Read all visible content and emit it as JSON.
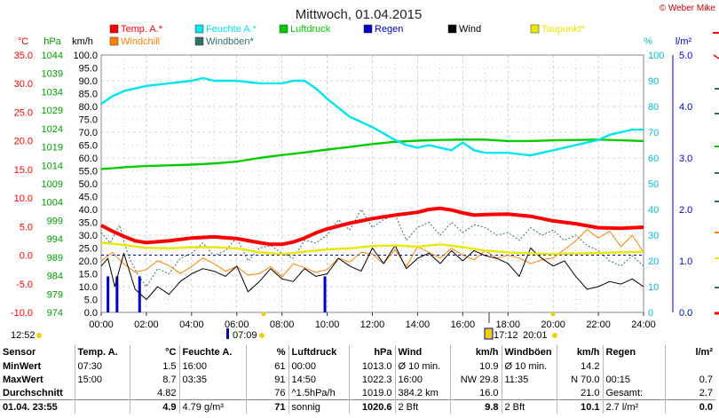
{
  "header": {
    "title": "Mittwoch, 01.04.2015",
    "copyright": "© Weber Mike"
  },
  "legend": [
    {
      "label": "Temp. A.*",
      "color": "#ff0000"
    },
    {
      "label": "Feuchte A.*",
      "color": "#00e5ee"
    },
    {
      "label": "Luftdruck",
      "color": "#00cc00"
    },
    {
      "label": "Regen",
      "color": "#0000cc"
    },
    {
      "label": "Wind",
      "color": "#000000"
    },
    {
      "label": "Taupunkt*",
      "color": "#e8e800"
    },
    {
      "label": "Windchill",
      "color": "#ff8000"
    },
    {
      "label": "Windböen*",
      "color": "#2f6f6f"
    }
  ],
  "axes": {
    "temp_unit": "°C",
    "pressure_unit": "hPa",
    "wind_unit": "km/h",
    "humidity_unit": "%",
    "rain_unit": "l/m²",
    "temp_ticks": [
      "35.0",
      "30.0",
      "25.0",
      "20.0",
      "15.0",
      "10.0",
      "5.0",
      "0.0",
      "-5.0",
      "-10.0"
    ],
    "pressure_ticks": [
      "1044",
      "1039",
      "1034",
      "1029",
      "1024",
      "1019",
      "1014",
      "1009",
      "1004",
      "999",
      "994",
      "989",
      "984",
      "979",
      "974"
    ],
    "wind_ticks": [
      "100.0",
      "95.0",
      "90.0",
      "85.0",
      "80.0",
      "75.0",
      "70.0",
      "65.0",
      "60.0",
      "55.0",
      "50.0",
      "45.0",
      "40.0",
      "35.0",
      "30.0",
      "25.0",
      "20.0",
      "15.0",
      "10.0",
      "5.0",
      "0.0"
    ],
    "humidity_ticks": [
      "100",
      "90",
      "80",
      "70",
      "60",
      "50",
      "40",
      "30",
      "20",
      "10",
      "0"
    ],
    "rain_ticks": [
      "5.0",
      "4.0",
      "3.0",
      "2.0",
      "1.0",
      "0.0"
    ],
    "x_ticks": [
      "00:00",
      "02:00",
      "04:00",
      "06:00",
      "08:00",
      "10:00",
      "12:00",
      "14:00",
      "16:00",
      "18:00",
      "20:00",
      "22:00",
      "24:00"
    ],
    "x_markers": [
      "12:52",
      "07:09",
      "17:12",
      "20:01"
    ]
  },
  "chart_data": {
    "type": "line",
    "title": "Mittwoch, 01.04.2015",
    "x_unit": "hours",
    "xlim": [
      0,
      24
    ],
    "series": [
      {
        "name": "Temp. A.*",
        "axis": "°C",
        "ylim": [
          -10,
          35
        ],
        "x": [
          0,
          0.5,
          1,
          1.5,
          2,
          3,
          4,
          5,
          6,
          7,
          7.5,
          8,
          8.5,
          9,
          9.5,
          10,
          11,
          12,
          13,
          14,
          14.5,
          15,
          15.5,
          16,
          16.5,
          17,
          18,
          19,
          20,
          21,
          22,
          23,
          24
        ],
        "values": [
          5.2,
          4.2,
          3.3,
          2.5,
          2.2,
          2.5,
          3.0,
          3.2,
          2.9,
          2.2,
          1.9,
          1.9,
          2.3,
          3.0,
          3.9,
          4.6,
          5.6,
          6.4,
          7.0,
          7.5,
          8.0,
          8.2,
          7.9,
          7.4,
          7.0,
          7.1,
          7.2,
          6.8,
          6.0,
          5.5,
          4.8,
          4.7,
          4.9
        ]
      },
      {
        "name": "Feuchte A.*",
        "axis": "%",
        "ylim": [
          0,
          100
        ],
        "x": [
          0,
          0.5,
          1,
          1.5,
          2,
          3,
          4,
          4.5,
          5,
          6,
          7,
          7.5,
          8,
          8.5,
          9,
          9.5,
          10,
          11,
          12,
          13,
          13.5,
          14,
          14.5,
          15,
          15.5,
          16,
          16.5,
          17,
          18,
          19,
          20,
          21,
          22,
          22.5,
          23,
          23.5,
          24
        ],
        "values": [
          81,
          84,
          86,
          87,
          88,
          89,
          90,
          91,
          90,
          90,
          89,
          89,
          89,
          90,
          90,
          87,
          83,
          76,
          72,
          67,
          65,
          64,
          65,
          64,
          63,
          66,
          63,
          62,
          62,
          61,
          63,
          65,
          67,
          69,
          70,
          71,
          71
        ]
      },
      {
        "name": "Luftdruck",
        "axis": "hPa",
        "ylim": [
          974,
          1044
        ],
        "x": [
          0,
          0.5,
          1,
          2,
          3,
          4,
          5,
          6,
          7,
          8,
          9,
          10,
          11,
          12,
          13,
          14,
          15,
          16,
          17,
          18,
          19,
          20,
          21,
          22,
          23,
          24
        ],
        "values": [
          1013.0,
          1013.2,
          1013.5,
          1013.8,
          1014.0,
          1014.2,
          1014.5,
          1015.0,
          1016.0,
          1016.8,
          1017.5,
          1018.3,
          1019.0,
          1019.8,
          1020.4,
          1020.7,
          1020.9,
          1021.0,
          1021.0,
          1020.6,
          1020.6,
          1020.8,
          1020.9,
          1021.0,
          1020.8,
          1020.6
        ]
      },
      {
        "name": "Taupunkt*",
        "axis": "°C",
        "ylim": [
          -10,
          35
        ],
        "x": [
          0,
          1,
          2,
          3,
          4,
          5,
          6,
          7,
          8,
          9,
          10,
          11,
          12,
          13,
          14,
          15,
          16,
          17,
          18,
          19,
          20,
          21,
          22,
          23,
          24
        ],
        "values": [
          2.2,
          1.8,
          1.3,
          1.2,
          1.4,
          1.4,
          1.2,
          0.5,
          0.2,
          0.6,
          1.0,
          1.2,
          1.6,
          1.7,
          1.5,
          1.9,
          1.4,
          0.8,
          0.5,
          0.3,
          0.2,
          0.3,
          0.4,
          0.5,
          0.6
        ]
      },
      {
        "name": "Windchill",
        "axis": "°C",
        "ylim": [
          -10,
          35
        ],
        "x": [
          0,
          0.5,
          1,
          1.5,
          2,
          2.5,
          3,
          3.5,
          4,
          4.5,
          5,
          5.5,
          6,
          6.5,
          7,
          7.5,
          8,
          8.5,
          9,
          9.5,
          10,
          10.5,
          11,
          11.5,
          12,
          12.5,
          13,
          13.5,
          14,
          14.5,
          15,
          15.5,
          16,
          16.5,
          17,
          17.5,
          18,
          18.5,
          19,
          19.5,
          20,
          20.5,
          21,
          21.5,
          22,
          22.5,
          23,
          23.5,
          24
        ],
        "values": [
          -1.0,
          0.5,
          -1.5,
          -3.0,
          -2.5,
          -1.0,
          -1.8,
          -3.2,
          -2.0,
          -0.5,
          -1.5,
          -2.8,
          -2.0,
          -3.5,
          -3.2,
          -2.0,
          -3.8,
          -1.5,
          -2.2,
          -3.0,
          -2.5,
          -0.5,
          -1.2,
          0.5,
          0.2,
          -1.5,
          1.0,
          -2.0,
          1.5,
          0.5,
          -0.5,
          1.2,
          0.0,
          -0.8,
          0.8,
          -0.5,
          0.0,
          -0.5,
          -1.5,
          -0.8,
          -0.5,
          1.0,
          2.5,
          4.5,
          3.0,
          4.2,
          1.5,
          3.5,
          0.5
        ]
      },
      {
        "name": "Wind",
        "axis": "km/h",
        "ylim": [
          0,
          100
        ],
        "x": [
          0,
          0.3,
          0.6,
          1,
          1.5,
          2,
          2.5,
          3,
          3.5,
          4,
          4.5,
          5,
          5.5,
          6,
          6.5,
          7,
          7.5,
          8,
          8.5,
          9,
          9.5,
          10,
          10.5,
          11,
          11.5,
          12,
          12.5,
          13,
          13.5,
          14,
          14.5,
          15,
          15.5,
          16,
          16.5,
          17,
          17.5,
          18,
          18.5,
          19,
          19.5,
          20,
          20.5,
          21,
          21.5,
          22,
          22.5,
          23,
          23.5,
          24
        ],
        "values": [
          18,
          21,
          10,
          23,
          9,
          5,
          10,
          7,
          12,
          15,
          17,
          16,
          14,
          18,
          8,
          12,
          17,
          13,
          12,
          17,
          14,
          15,
          21,
          18,
          16,
          25,
          19,
          26,
          17,
          21,
          23,
          19,
          24,
          20,
          24,
          22,
          21,
          19,
          14,
          25,
          21,
          18,
          20,
          14,
          9,
          10,
          12,
          11,
          13,
          10
        ]
      },
      {
        "name": "Windböen*",
        "axis": "km/h",
        "ylim": [
          0,
          100
        ],
        "x": [
          0,
          0.4,
          0.8,
          1.2,
          1.6,
          2,
          2.5,
          3,
          3.5,
          4,
          4.5,
          5,
          5.5,
          6,
          6.5,
          7,
          7.5,
          8,
          8.5,
          9,
          9.5,
          10,
          10.5,
          11,
          11.5,
          12,
          12.5,
          13,
          13.5,
          14,
          14.5,
          15,
          15.5,
          16,
          16.5,
          17,
          17.5,
          18,
          18.5,
          19,
          19.5,
          20,
          20.5,
          21,
          21.5,
          22,
          22.5,
          23,
          23.5,
          24
        ],
        "values": [
          31,
          27,
          34,
          22,
          15,
          10,
          17,
          15,
          21,
          23,
          27,
          22,
          24,
          29,
          20,
          25,
          26,
          23,
          21,
          28,
          27,
          30,
          36,
          32,
          40,
          33,
          36,
          38,
          28,
          33,
          35,
          30,
          35,
          31,
          34,
          33,
          30,
          31,
          28,
          33,
          30,
          32,
          28,
          30,
          26,
          24,
          20,
          18,
          22,
          18
        ]
      },
      {
        "name": "Regen",
        "axis": "l/m²",
        "type": "bar",
        "ylim": [
          0,
          5
        ],
        "x": [
          0.3,
          0.7,
          1.7,
          9.9
        ],
        "values": [
          0.7,
          0.7,
          0.7,
          0.7
        ]
      }
    ]
  },
  "stats": {
    "headers": [
      "Sensor",
      "Temp. A.",
      "°C",
      "Feuchte A.",
      "%",
      "Luftdruck",
      "hPa",
      "Wind",
      "km/h",
      "Windböen",
      "km/h",
      "Regen",
      "l/m²"
    ],
    "rows": [
      [
        "MinWert",
        "07:30",
        "1.5",
        "16:00",
        "61",
        "00:00",
        "1013.0",
        "Ø 10 min.",
        "10.9",
        "Ø 10 min.",
        "14.2",
        "",
        ""
      ],
      [
        "MaxWert",
        "15:00",
        "8.7",
        "03:35",
        "91",
        "14:50",
        "1022.3",
        "16:00",
        "NW 29.8",
        "11:35",
        "N 70.0",
        "00:15",
        "0.7"
      ],
      [
        "Durchschnitt",
        "",
        "4.82",
        "",
        "76",
        "^1.5hPa/h",
        "1019.0",
        "384.2 km",
        "16.0",
        "",
        "21.0",
        "Gesamt:",
        "2.7"
      ],
      [
        "01.04. 23:55",
        "",
        "4.9",
        "4.79 g/m³",
        "71",
        "sonnig",
        "1020.6",
        "2 Bft",
        "9.8",
        "2 Bft",
        "10.1",
        "2.7 l/m²",
        "0.0"
      ]
    ]
  }
}
